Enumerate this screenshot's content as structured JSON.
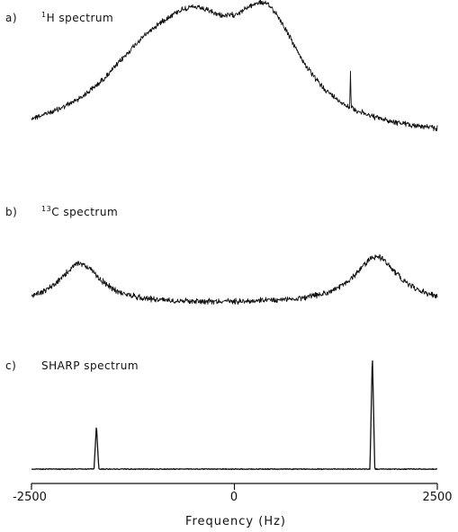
{
  "chart_data": [
    {
      "type": "line",
      "panel_letter": "a)",
      "title_sup": "1",
      "title_rest": "H spectrum",
      "peaks_hz": [
        -1100,
        -500,
        400,
        1430
      ],
      "peak_relative_heights": [
        0.55,
        0.72,
        1.0,
        0.34
      ],
      "xlim": [
        -2500,
        2500
      ]
    },
    {
      "type": "line",
      "panel_letter": "b)",
      "title_sup": "13",
      "title_rest": "C spectrum",
      "peaks_hz": [
        -1900,
        1750
      ],
      "peak_relative_heights": [
        0.85,
        1.0
      ],
      "xlim": [
        -2500,
        2500
      ]
    },
    {
      "type": "line",
      "panel_letter": "c)",
      "title_sup": "",
      "title_rest": "SHARP spectrum",
      "peaks_hz": [
        -1700,
        1700
      ],
      "peak_relative_heights": [
        0.38,
        1.0
      ],
      "xlim": [
        -2500,
        2500
      ],
      "xlabel": "Frequency (Hz)",
      "xticks": [
        "-2500",
        "0",
        "2500"
      ]
    }
  ]
}
